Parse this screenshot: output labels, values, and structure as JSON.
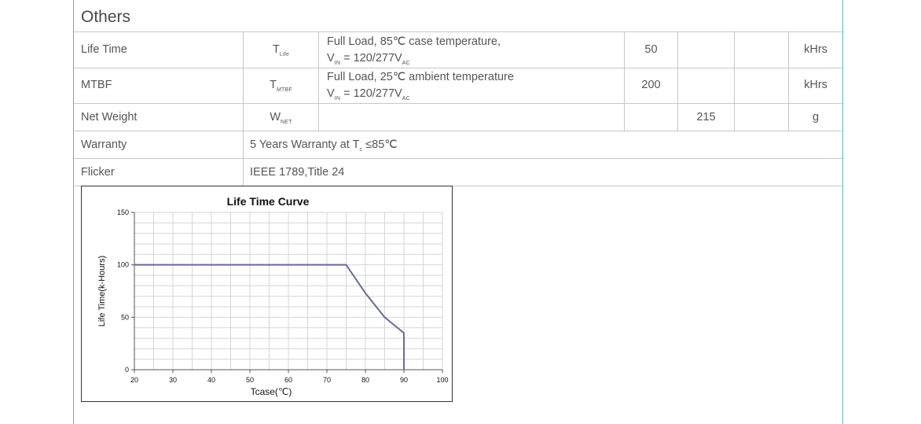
{
  "section": {
    "title": "Others"
  },
  "rows": {
    "life_time": {
      "param": "Life Time",
      "symbol_main": "T",
      "symbol_sub": "Life",
      "cond_line1": "Full Load, 85℃  case temperature,",
      "cond_line2_main": "V",
      "cond_line2_sub1": "IN",
      "cond_line2_mid": " = 120/277V",
      "cond_line2_sub2": "AC",
      "min": "50",
      "unit": "kHrs"
    },
    "mtbf": {
      "param": "MTBF",
      "symbol_main": "T",
      "symbol_sub": "MTBF",
      "cond_line1": "Full Load, 25℃  ambient temperature",
      "cond_line2_main": "V",
      "cond_line2_sub1": "IN",
      "cond_line2_mid": " = 120/277V",
      "cond_line2_sub2": "AC",
      "min": "200",
      "unit": "kHrs"
    },
    "net_weight": {
      "param": "Net Weight",
      "symbol_main": "W",
      "symbol_sub": "NET",
      "typ": "215",
      "unit": "g"
    },
    "warranty": {
      "param": "Warranty",
      "value_pre": "5 Years Warranty at T",
      "value_sub": "c",
      "value_post": " ≤85℃"
    },
    "flicker": {
      "param": "Flicker",
      "value": "IEEE 1789,Title 24"
    }
  },
  "chart_data": {
    "type": "line",
    "title": "Life Time Curve",
    "xlabel": "Tcase(℃)",
    "ylabel": "Life Time(k-Hours)",
    "xlim": [
      20,
      100
    ],
    "ylim": [
      0,
      150
    ],
    "x_ticks": [
      "20",
      "30",
      "40",
      "50",
      "60",
      "70",
      "80",
      "90",
      "100"
    ],
    "y_ticks": [
      "0",
      "50",
      "100",
      "150"
    ],
    "grid": true,
    "series": [
      {
        "color": "#6a6a9a",
        "points": [
          [
            20,
            100
          ],
          [
            75,
            100
          ],
          [
            80,
            73
          ],
          [
            85,
            50
          ],
          [
            90,
            35
          ],
          [
            90,
            0
          ]
        ]
      }
    ]
  }
}
